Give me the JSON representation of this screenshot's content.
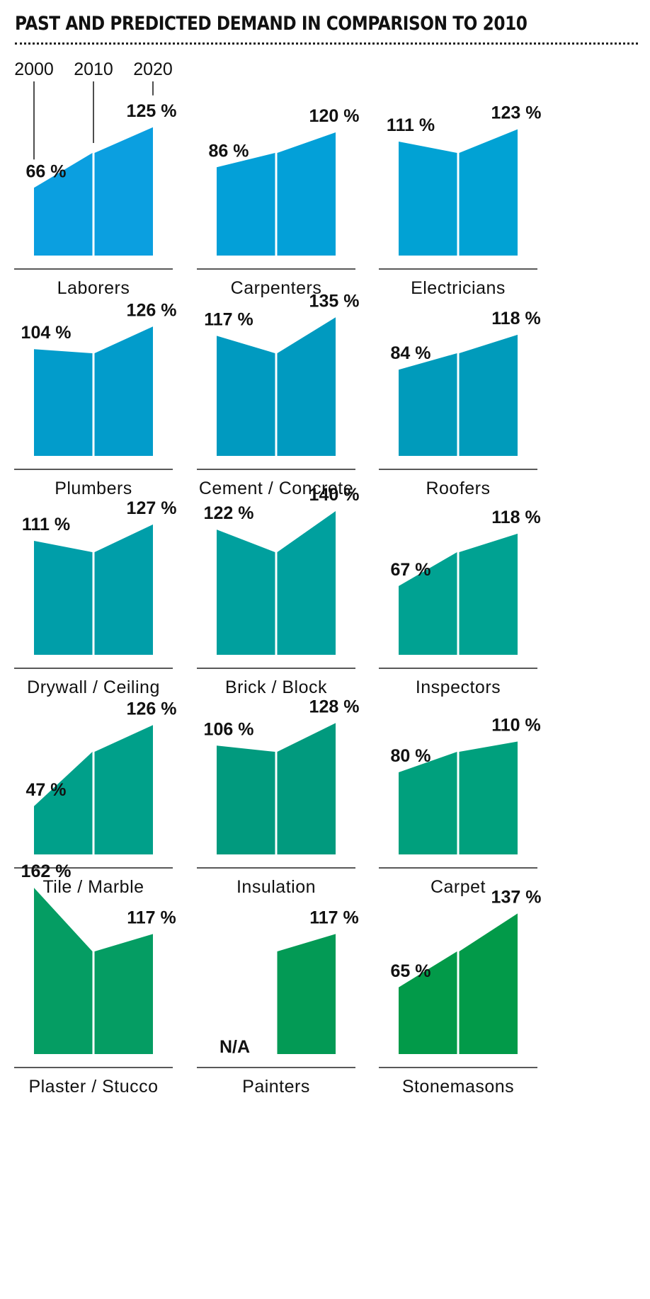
{
  "title": "PAST AND PREDICTED DEMAND IN COMPARISON TO 2010",
  "chart_data": {
    "type": "area",
    "title": "PAST AND PREDICTED DEMAND IN COMPARISON TO 2010",
    "x": [
      "2000",
      "2010",
      "2020"
    ],
    "unit": "%",
    "baseline_value": 100,
    "value_labels": {
      "na": "N/A"
    },
    "colors": [
      "#0b9fe0",
      "#03a0d8",
      "#01a2d4",
      "#029ccb",
      "#009ac0",
      "#009bbb",
      "#009ea9",
      "#00a09e",
      "#00a292",
      "#00a08a",
      "#019a7e",
      "#00a07d",
      "#059d63",
      "#039a55",
      "#029a49"
    ],
    "series": [
      {
        "name": "Laborers",
        "values": [
          66,
          100,
          125
        ],
        "labels": [
          "66 %",
          "",
          "125 %"
        ]
      },
      {
        "name": "Carpenters",
        "values": [
          86,
          100,
          120
        ],
        "labels": [
          "86 %",
          "",
          "120 %"
        ]
      },
      {
        "name": "Electricians",
        "values": [
          111,
          100,
          123
        ],
        "labels": [
          "111 %",
          "",
          "123 %"
        ]
      },
      {
        "name": "Plumbers",
        "values": [
          104,
          100,
          126
        ],
        "labels": [
          "104 %",
          "",
          "126 %"
        ]
      },
      {
        "name": "Cement / Concrete",
        "values": [
          117,
          100,
          135
        ],
        "labels": [
          "117 %",
          "",
          "135 %"
        ]
      },
      {
        "name": "Roofers",
        "values": [
          84,
          100,
          118
        ],
        "labels": [
          "84 %",
          "",
          "118 %"
        ]
      },
      {
        "name": "Drywall / Ceiling",
        "values": [
          111,
          100,
          127
        ],
        "labels": [
          "111 %",
          "",
          "127 %"
        ]
      },
      {
        "name": "Brick / Block",
        "values": [
          122,
          100,
          140
        ],
        "labels": [
          "122 %",
          "",
          "140 %"
        ]
      },
      {
        "name": "Inspectors",
        "values": [
          67,
          100,
          118
        ],
        "labels": [
          "67 %",
          "",
          "118 %"
        ]
      },
      {
        "name": "Tile / Marble",
        "values": [
          47,
          100,
          126
        ],
        "labels": [
          "47 %",
          "",
          "126 %"
        ]
      },
      {
        "name": "Insulation",
        "values": [
          106,
          100,
          128
        ],
        "labels": [
          "106 %",
          "",
          "128 %"
        ]
      },
      {
        "name": "Carpet",
        "values": [
          80,
          100,
          110
        ],
        "labels": [
          "80 %",
          "",
          "110 %"
        ]
      },
      {
        "name": "Plaster / Stucco",
        "values": [
          162,
          100,
          117
        ],
        "labels": [
          "162 %",
          "",
          "117 %"
        ]
      },
      {
        "name": "Painters",
        "values": [
          null,
          100,
          117
        ],
        "labels": [
          "N/A",
          "",
          "117 %"
        ]
      },
      {
        "name": "Stonemasons",
        "values": [
          65,
          100,
          137
        ],
        "labels": [
          "65 %",
          "",
          "137 %"
        ]
      }
    ]
  }
}
